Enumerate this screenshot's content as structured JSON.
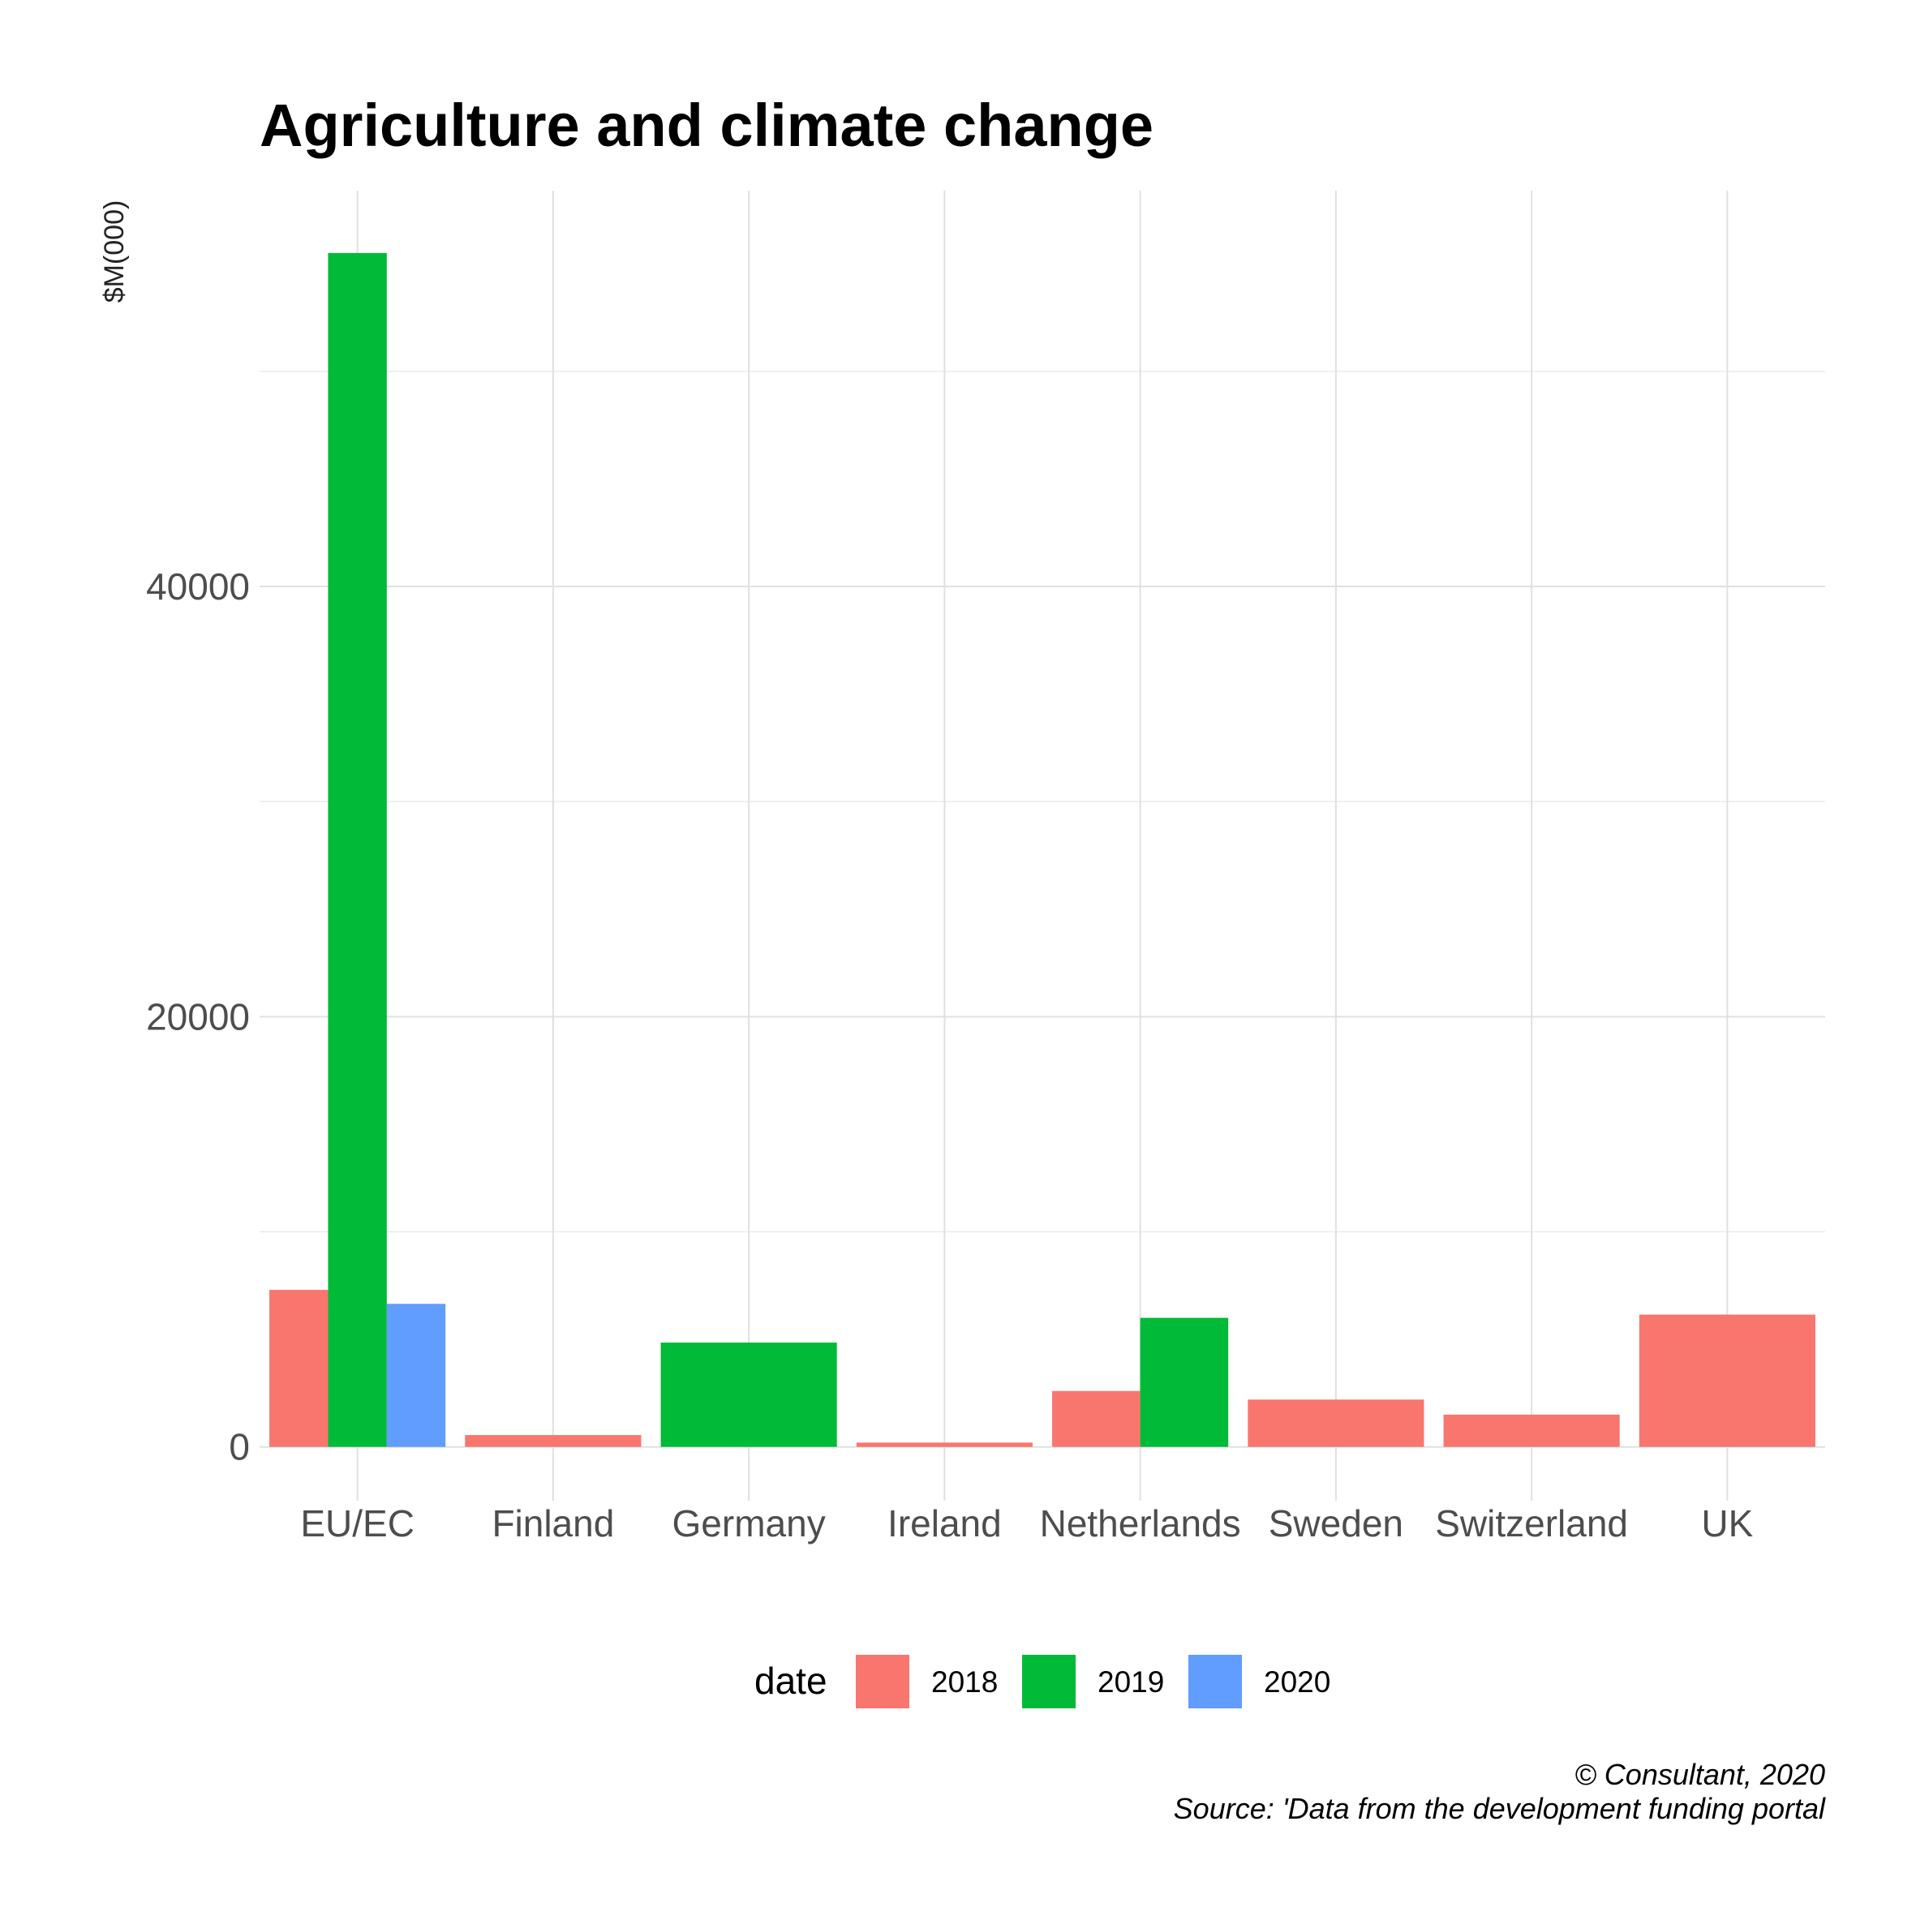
{
  "chart_data": {
    "type": "bar",
    "title": "Agriculture and climate change",
    "ylabel": "$M(000)",
    "xlabel": "",
    "categories": [
      "EU/EC",
      "Finland",
      "Germany",
      "Ireland",
      "Netherlands",
      "Sweden",
      "Switzerland",
      "UK"
    ],
    "series": [
      {
        "name": "2018",
        "color": "#F8766D",
        "values": [
          7300,
          550,
          null,
          200,
          2600,
          2200,
          1500,
          6150
        ]
      },
      {
        "name": "2019",
        "color": "#00BA38",
        "values": [
          55500,
          null,
          4850,
          null,
          6000,
          null,
          null,
          null
        ]
      },
      {
        "name": "2020",
        "color": "#619CFF",
        "values": [
          6650,
          null,
          null,
          null,
          null,
          null,
          null,
          null
        ]
      }
    ],
    "y_ticks": [
      0,
      20000,
      40000
    ],
    "ylim": [
      -2500,
      58400
    ],
    "grid": true,
    "legend": {
      "title": "date",
      "position": "bottom"
    },
    "caption": [
      "© Consultant, 2020",
      "Source: 'Data from the development funding portal"
    ]
  }
}
